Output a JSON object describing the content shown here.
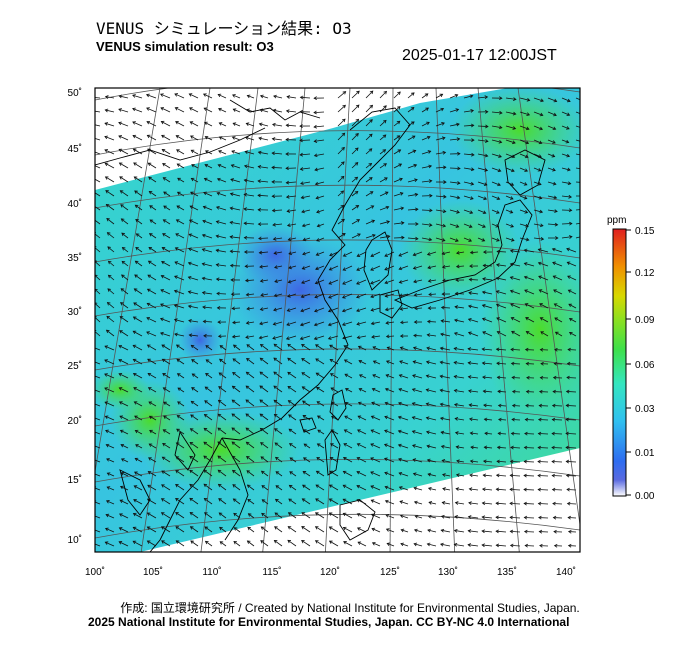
{
  "header": {
    "title_jp": "VENUS シミュレーション結果: O3",
    "title_en": "VENUS simulation result: O3",
    "timestamp": "2025-01-17 12:00JST"
  },
  "map": {
    "lat_labels": [
      "50˚",
      "45˚",
      "40˚",
      "35˚",
      "30˚",
      "25˚",
      "20˚",
      "15˚",
      "10˚"
    ],
    "lon_labels": [
      "100˚",
      "105˚",
      "110˚",
      "115˚",
      "120˚",
      "125˚",
      "130˚",
      "135˚",
      "140˚"
    ]
  },
  "legend": {
    "unit": "ppm",
    "ticks": [
      "0.15",
      "0.12",
      "0.09",
      "0.06",
      "0.03",
      "0.01",
      "0.00"
    ],
    "colors": [
      "#ffffff",
      "#3a5ee0",
      "#2fb4f0",
      "#36e6b0",
      "#3fd83a",
      "#d8d800",
      "#f08000",
      "#e02020"
    ]
  },
  "footer": {
    "credit_line1": "作成: 国立環境研究所 / Created by National Institute for Environmental Studies, Japan.",
    "credit_line2": "2025 National Institute for Environmental Studies, Japan. CC BY-NC 4.0 International"
  }
}
